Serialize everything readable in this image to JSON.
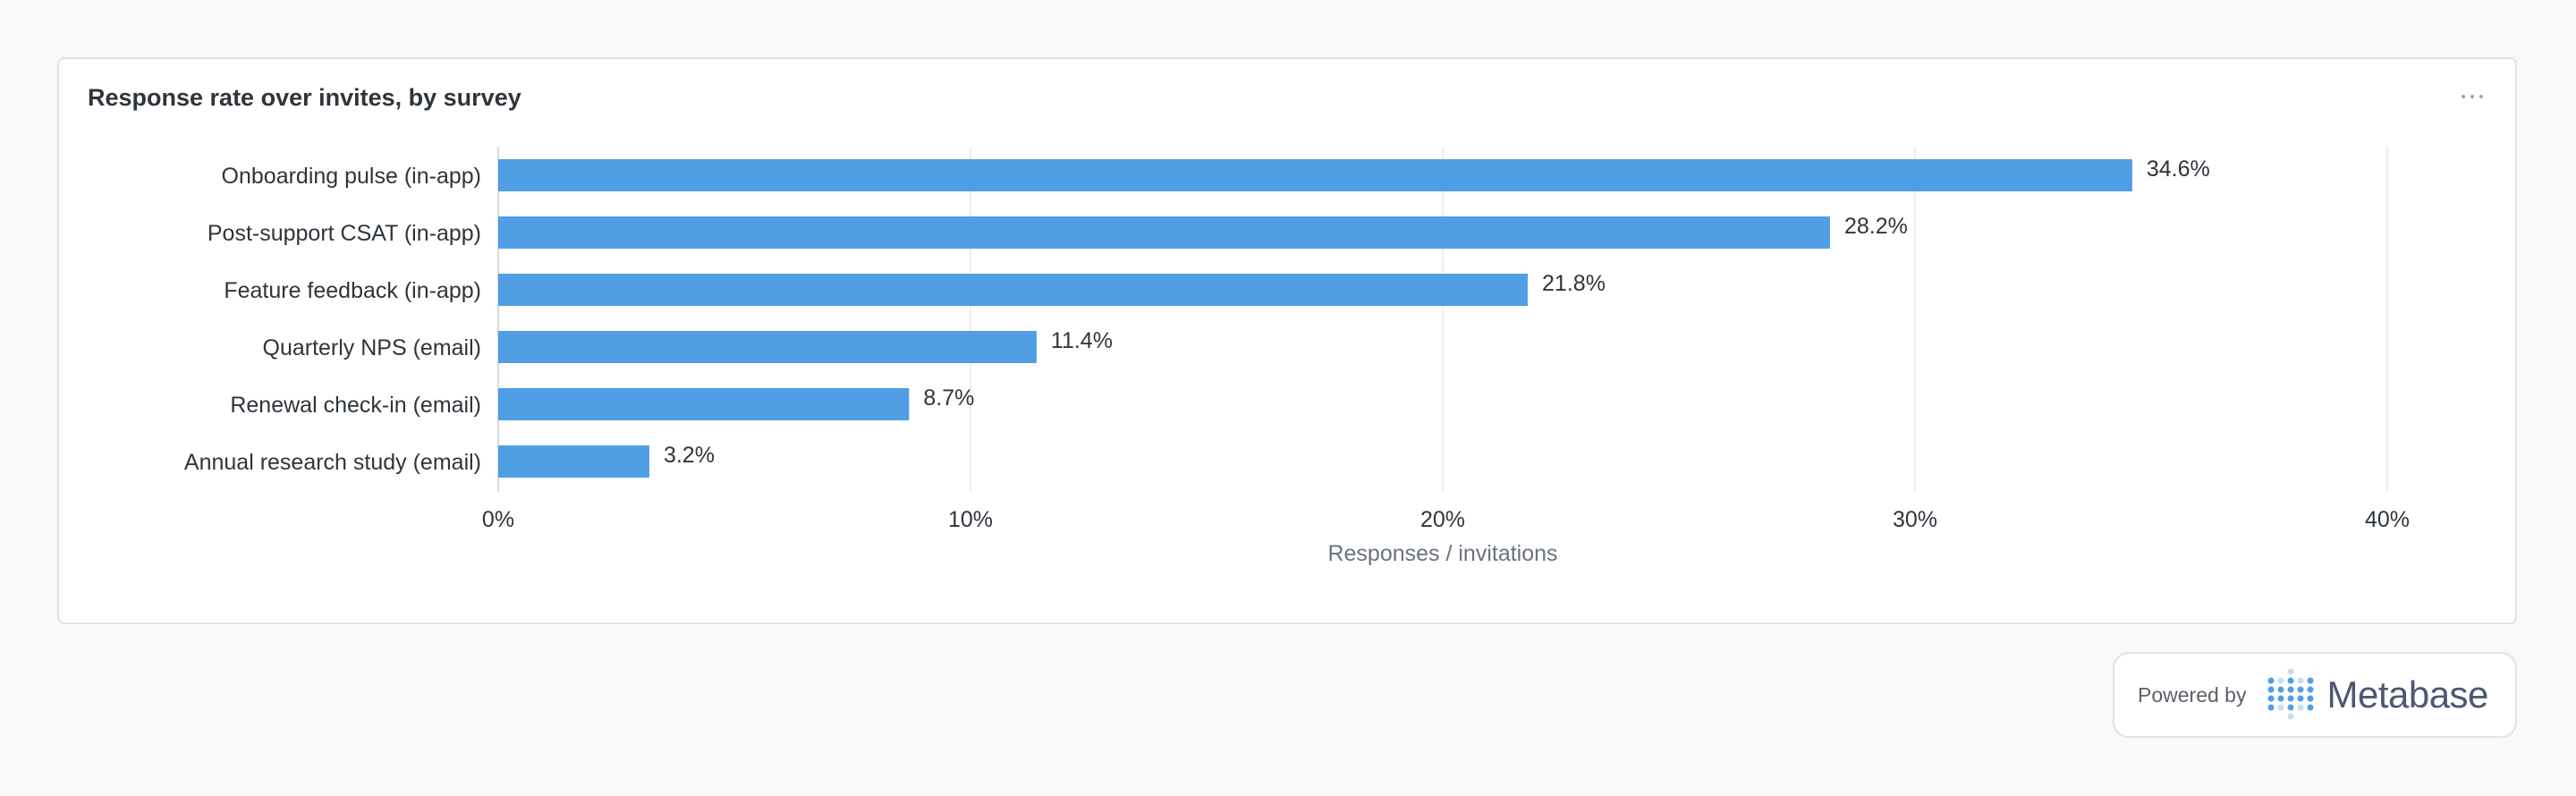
{
  "card": {
    "title": "Response rate over invites, by survey"
  },
  "chart_data": {
    "type": "bar",
    "orientation": "horizontal",
    "title": "Response rate over invites, by survey",
    "categories": [
      "Onboarding pulse (in-app)",
      "Post-support CSAT (in-app)",
      "Feature feedback (in-app)",
      "Quarterly NPS (email)",
      "Renewal check-in (email)",
      "Annual research study (email)"
    ],
    "values": [
      34.6,
      28.2,
      21.8,
      11.4,
      8.7,
      3.2
    ],
    "value_labels": [
      "34.6%",
      "28.2%",
      "21.8%",
      "11.4%",
      "8.7%",
      "3.2%"
    ],
    "xlabel": "Responses / invitations",
    "ylabel": "",
    "xlim": [
      0,
      40
    ],
    "ticks": [
      0,
      10,
      20,
      30,
      40
    ],
    "tick_labels": [
      "0%",
      "10%",
      "20%",
      "30%",
      "40%"
    ],
    "grid": true,
    "bar_color": "#509ee3"
  },
  "powered_by": {
    "label": "Powered by",
    "brand": "Metabase"
  }
}
